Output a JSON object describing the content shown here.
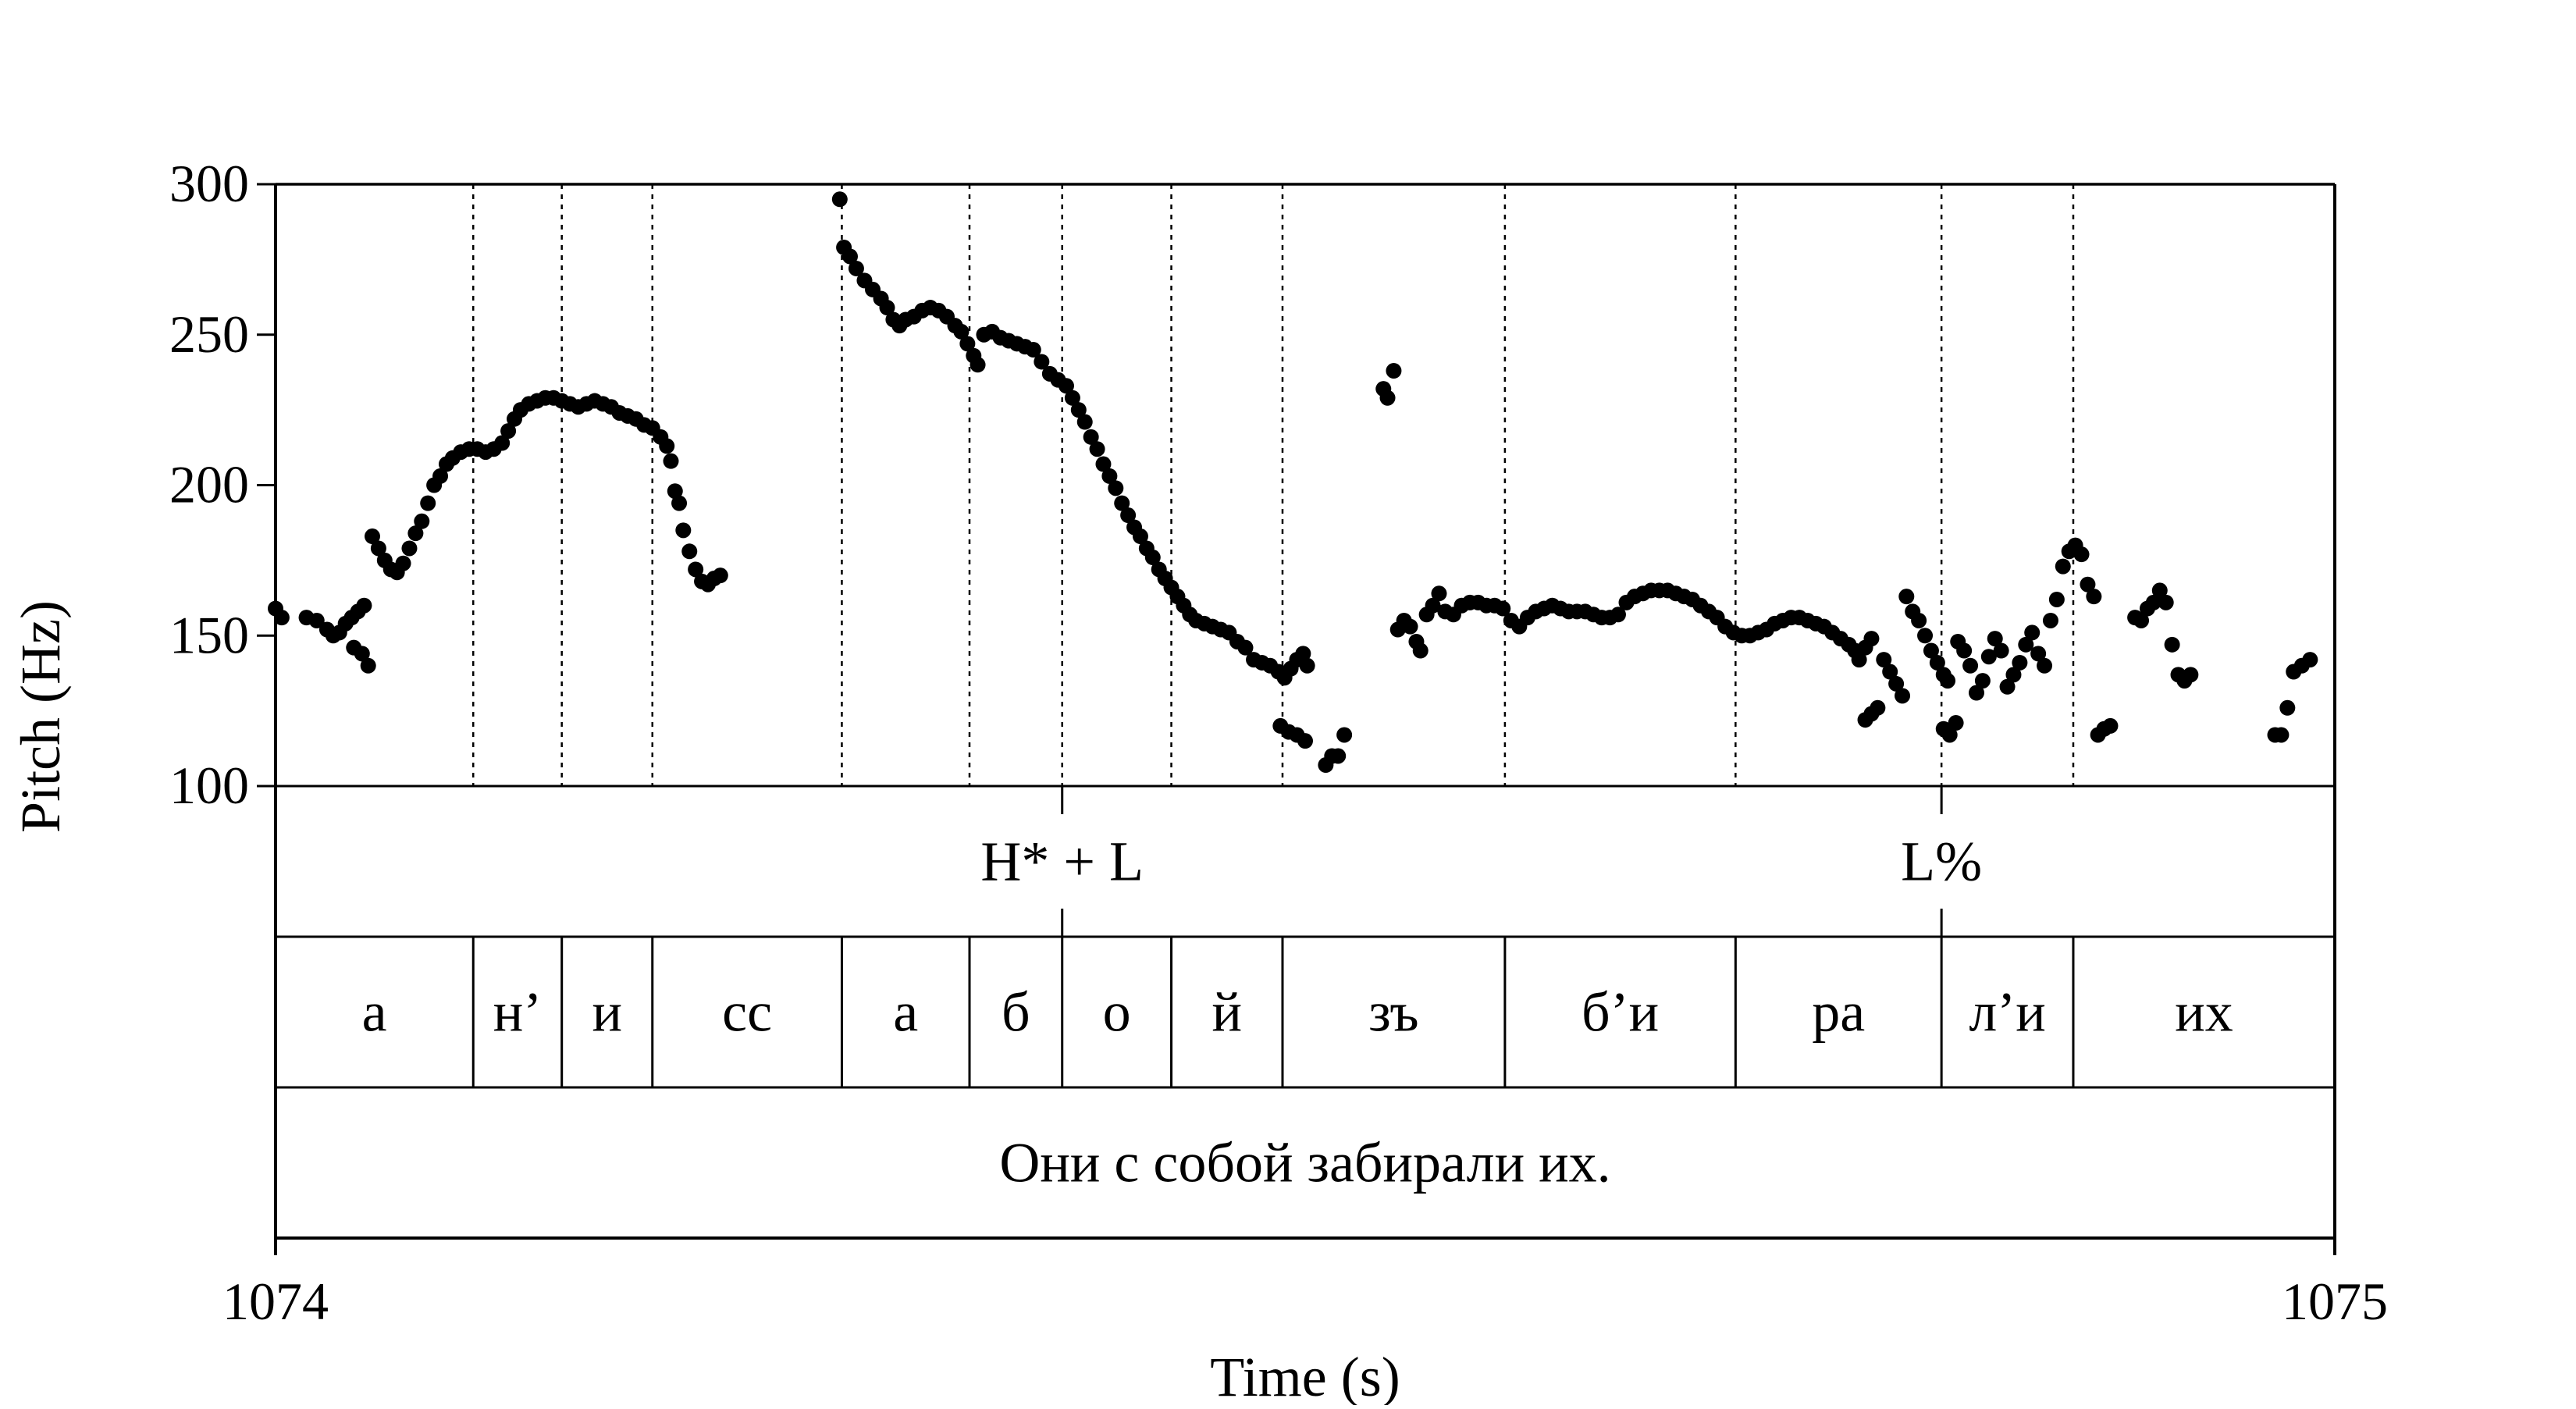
{
  "chart_data": {
    "type": "scatter",
    "xlabel": "Time (s)",
    "ylabel": "Pitch (Hz)",
    "xlim": [
      1074,
      1075
    ],
    "ylim": [
      100,
      300
    ],
    "x_ticks": [
      "1074",
      "1075"
    ],
    "y_ticks": [
      "300",
      "250",
      "200",
      "150",
      "100"
    ],
    "grid": false,
    "series": [
      {
        "points": [
          [
            1074.0,
            159
          ],
          [
            1074.003,
            156
          ],
          [
            1074.015,
            156
          ],
          [
            1074.02,
            155
          ],
          [
            1074.025,
            152
          ],
          [
            1074.028,
            150
          ],
          [
            1074.031,
            151
          ],
          [
            1074.034,
            154
          ],
          [
            1074.037,
            156
          ],
          [
            1074.04,
            158
          ],
          [
            1074.043,
            160
          ],
          [
            1074.038,
            146
          ],
          [
            1074.042,
            144
          ],
          [
            1074.045,
            140
          ],
          [
            1074.047,
            183
          ],
          [
            1074.05,
            179
          ],
          [
            1074.053,
            175
          ],
          [
            1074.056,
            172
          ],
          [
            1074.059,
            171
          ],
          [
            1074.062,
            174
          ],
          [
            1074.065,
            179
          ],
          [
            1074.068,
            184
          ],
          [
            1074.071,
            188
          ],
          [
            1074.074,
            194
          ],
          [
            1074.077,
            200
          ],
          [
            1074.08,
            203
          ],
          [
            1074.083,
            207
          ],
          [
            1074.086,
            209
          ],
          [
            1074.09,
            211
          ],
          [
            1074.094,
            212
          ],
          [
            1074.098,
            212
          ],
          [
            1074.102,
            211
          ],
          [
            1074.106,
            212
          ],
          [
            1074.11,
            214
          ],
          [
            1074.113,
            218
          ],
          [
            1074.116,
            222
          ],
          [
            1074.119,
            225
          ],
          [
            1074.123,
            227
          ],
          [
            1074.127,
            228
          ],
          [
            1074.131,
            229
          ],
          [
            1074.135,
            229
          ],
          [
            1074.139,
            228
          ],
          [
            1074.143,
            227
          ],
          [
            1074.147,
            226
          ],
          [
            1074.151,
            227
          ],
          [
            1074.155,
            228
          ],
          [
            1074.159,
            227
          ],
          [
            1074.163,
            226
          ],
          [
            1074.167,
            224
          ],
          [
            1074.171,
            223
          ],
          [
            1074.175,
            222
          ],
          [
            1074.179,
            220
          ],
          [
            1074.183,
            219
          ],
          [
            1074.187,
            216
          ],
          [
            1074.19,
            213
          ],
          [
            1074.192,
            208
          ],
          [
            1074.194,
            198
          ],
          [
            1074.196,
            194
          ],
          [
            1074.198,
            185
          ],
          [
            1074.201,
            178
          ],
          [
            1074.204,
            172
          ],
          [
            1074.207,
            168
          ],
          [
            1074.21,
            167
          ],
          [
            1074.213,
            169
          ],
          [
            1074.216,
            170
          ],
          [
            1074.274,
            295
          ],
          [
            1074.276,
            279
          ],
          [
            1074.279,
            276
          ],
          [
            1074.282,
            272
          ],
          [
            1074.286,
            268
          ],
          [
            1074.29,
            265
          ],
          [
            1074.294,
            262
          ],
          [
            1074.297,
            259
          ],
          [
            1074.3,
            255
          ],
          [
            1074.303,
            253
          ],
          [
            1074.306,
            255
          ],
          [
            1074.31,
            256
          ],
          [
            1074.314,
            258
          ],
          [
            1074.318,
            259
          ],
          [
            1074.322,
            258
          ],
          [
            1074.326,
            256
          ],
          [
            1074.33,
            253
          ],
          [
            1074.333,
            251
          ],
          [
            1074.336,
            247
          ],
          [
            1074.339,
            243
          ],
          [
            1074.341,
            240
          ],
          [
            1074.344,
            250
          ],
          [
            1074.348,
            251
          ],
          [
            1074.352,
            249
          ],
          [
            1074.356,
            248
          ],
          [
            1074.36,
            247
          ],
          [
            1074.364,
            246
          ],
          [
            1074.368,
            245
          ],
          [
            1074.372,
            241
          ],
          [
            1074.376,
            237
          ],
          [
            1074.38,
            235
          ],
          [
            1074.384,
            233
          ],
          [
            1074.387,
            229
          ],
          [
            1074.39,
            225
          ],
          [
            1074.393,
            221
          ],
          [
            1074.396,
            216
          ],
          [
            1074.399,
            212
          ],
          [
            1074.402,
            207
          ],
          [
            1074.405,
            203
          ],
          [
            1074.408,
            199
          ],
          [
            1074.411,
            194
          ],
          [
            1074.414,
            190
          ],
          [
            1074.417,
            186
          ],
          [
            1074.42,
            183
          ],
          [
            1074.423,
            179
          ],
          [
            1074.426,
            176
          ],
          [
            1074.429,
            172
          ],
          [
            1074.432,
            169
          ],
          [
            1074.435,
            166
          ],
          [
            1074.438,
            163
          ],
          [
            1074.441,
            160
          ],
          [
            1074.444,
            157
          ],
          [
            1074.447,
            155
          ],
          [
            1074.451,
            154
          ],
          [
            1074.455,
            153
          ],
          [
            1074.459,
            152
          ],
          [
            1074.463,
            151
          ],
          [
            1074.467,
            148
          ],
          [
            1074.471,
            146
          ],
          [
            1074.475,
            142
          ],
          [
            1074.479,
            141
          ],
          [
            1074.483,
            140
          ],
          [
            1074.487,
            138
          ],
          [
            1074.49,
            136
          ],
          [
            1074.493,
            139
          ],
          [
            1074.496,
            142
          ],
          [
            1074.499,
            144
          ],
          [
            1074.501,
            140
          ],
          [
            1074.488,
            120
          ],
          [
            1074.492,
            118
          ],
          [
            1074.496,
            117
          ],
          [
            1074.5,
            115
          ],
          [
            1074.51,
            107
          ],
          [
            1074.513,
            110
          ],
          [
            1074.516,
            110
          ],
          [
            1074.519,
            117
          ],
          [
            1074.538,
            232
          ],
          [
            1074.54,
            229
          ],
          [
            1074.543,
            238
          ],
          [
            1074.545,
            152
          ],
          [
            1074.548,
            155
          ],
          [
            1074.551,
            153
          ],
          [
            1074.554,
            148
          ],
          [
            1074.556,
            145
          ],
          [
            1074.559,
            157
          ],
          [
            1074.562,
            160
          ],
          [
            1074.565,
            164
          ],
          [
            1074.568,
            158
          ],
          [
            1074.572,
            157
          ],
          [
            1074.576,
            160
          ],
          [
            1074.58,
            161
          ],
          [
            1074.584,
            161
          ],
          [
            1074.588,
            160
          ],
          [
            1074.592,
            160
          ],
          [
            1074.596,
            159
          ],
          [
            1074.6,
            155
          ],
          [
            1074.604,
            153
          ],
          [
            1074.608,
            156
          ],
          [
            1074.612,
            158
          ],
          [
            1074.616,
            159
          ],
          [
            1074.62,
            160
          ],
          [
            1074.624,
            159
          ],
          [
            1074.628,
            158
          ],
          [
            1074.632,
            158
          ],
          [
            1074.636,
            158
          ],
          [
            1074.64,
            157
          ],
          [
            1074.644,
            156
          ],
          [
            1074.648,
            156
          ],
          [
            1074.652,
            157
          ],
          [
            1074.656,
            161
          ],
          [
            1074.66,
            163
          ],
          [
            1074.664,
            164
          ],
          [
            1074.668,
            165
          ],
          [
            1074.672,
            165
          ],
          [
            1074.676,
            165
          ],
          [
            1074.68,
            164
          ],
          [
            1074.684,
            163
          ],
          [
            1074.688,
            162
          ],
          [
            1074.692,
            160
          ],
          [
            1074.696,
            158
          ],
          [
            1074.7,
            156
          ],
          [
            1074.704,
            153
          ],
          [
            1074.708,
            151
          ],
          [
            1074.712,
            150
          ],
          [
            1074.716,
            150
          ],
          [
            1074.72,
            151
          ],
          [
            1074.724,
            152
          ],
          [
            1074.728,
            154
          ],
          [
            1074.732,
            155
          ],
          [
            1074.736,
            156
          ],
          [
            1074.74,
            156
          ],
          [
            1074.744,
            155
          ],
          [
            1074.748,
            154
          ],
          [
            1074.752,
            153
          ],
          [
            1074.756,
            151
          ],
          [
            1074.76,
            149
          ],
          [
            1074.764,
            147
          ],
          [
            1074.767,
            145
          ],
          [
            1074.769,
            142
          ],
          [
            1074.772,
            146
          ],
          [
            1074.775,
            149
          ],
          [
            1074.772,
            122
          ],
          [
            1074.775,
            124
          ],
          [
            1074.778,
            126
          ],
          [
            1074.781,
            142
          ],
          [
            1074.784,
            138
          ],
          [
            1074.787,
            134
          ],
          [
            1074.79,
            130
          ],
          [
            1074.792,
            163
          ],
          [
            1074.795,
            158
          ],
          [
            1074.798,
            155
          ],
          [
            1074.801,
            150
          ],
          [
            1074.804,
            145
          ],
          [
            1074.807,
            141
          ],
          [
            1074.81,
            137
          ],
          [
            1074.812,
            135
          ],
          [
            1074.81,
            119
          ],
          [
            1074.813,
            117
          ],
          [
            1074.816,
            121
          ],
          [
            1074.817,
            148
          ],
          [
            1074.82,
            145
          ],
          [
            1074.823,
            140
          ],
          [
            1074.826,
            131
          ],
          [
            1074.829,
            135
          ],
          [
            1074.832,
            143
          ],
          [
            1074.835,
            149
          ],
          [
            1074.838,
            145
          ],
          [
            1074.841,
            133
          ],
          [
            1074.844,
            137
          ],
          [
            1074.847,
            141
          ],
          [
            1074.85,
            147
          ],
          [
            1074.853,
            151
          ],
          [
            1074.856,
            144
          ],
          [
            1074.859,
            140
          ],
          [
            1074.862,
            155
          ],
          [
            1074.865,
            162
          ],
          [
            1074.868,
            173
          ],
          [
            1074.871,
            178
          ],
          [
            1074.874,
            180
          ],
          [
            1074.877,
            177
          ],
          [
            1074.88,
            167
          ],
          [
            1074.883,
            163
          ],
          [
            1074.885,
            117
          ],
          [
            1074.888,
            119
          ],
          [
            1074.891,
            120
          ],
          [
            1074.903,
            156
          ],
          [
            1074.906,
            155
          ],
          [
            1074.909,
            159
          ],
          [
            1074.912,
            161
          ],
          [
            1074.915,
            165
          ],
          [
            1074.918,
            161
          ],
          [
            1074.921,
            147
          ],
          [
            1074.924,
            137
          ],
          [
            1074.927,
            135
          ],
          [
            1074.93,
            137
          ],
          [
            1074.971,
            117
          ],
          [
            1074.974,
            117
          ],
          [
            1074.977,
            126
          ],
          [
            1074.98,
            138
          ],
          [
            1074.984,
            140
          ],
          [
            1074.988,
            142
          ]
        ]
      }
    ],
    "tiers": [
      {
        "intervals": [
          {
            "start": 1074.0,
            "end": 1074.382,
            "text": ""
          },
          {
            "start": 1074.382,
            "end": 1074.809,
            "text": "H* + L"
          },
          {
            "start": 1074.809,
            "end": 1075.0,
            "text": "L%"
          }
        ]
      },
      {
        "intervals": [
          {
            "start": 1074.0,
            "end": 1074.096,
            "text": "а"
          },
          {
            "start": 1074.096,
            "end": 1074.139,
            "text": "н’"
          },
          {
            "start": 1074.139,
            "end": 1074.183,
            "text": "и"
          },
          {
            "start": 1074.183,
            "end": 1074.275,
            "text": "сс"
          },
          {
            "start": 1074.275,
            "end": 1074.337,
            "text": "а"
          },
          {
            "start": 1074.337,
            "end": 1074.382,
            "text": "б"
          },
          {
            "start": 1074.382,
            "end": 1074.435,
            "text": "о"
          },
          {
            "start": 1074.435,
            "end": 1074.489,
            "text": "й"
          },
          {
            "start": 1074.489,
            "end": 1074.597,
            "text": "зъ"
          },
          {
            "start": 1074.597,
            "end": 1074.709,
            "text": "б’и"
          },
          {
            "start": 1074.709,
            "end": 1074.809,
            "text": "ра"
          },
          {
            "start": 1074.809,
            "end": 1074.873,
            "text": "л’и"
          },
          {
            "start": 1074.873,
            "end": 1075.0,
            "text": "их"
          }
        ]
      },
      {
        "intervals": [
          {
            "start": 1074.0,
            "end": 1075.0,
            "text": "Они с собой забирали их."
          }
        ]
      }
    ]
  }
}
